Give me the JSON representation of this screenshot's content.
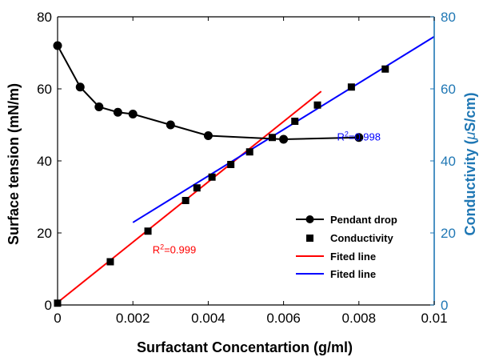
{
  "chart_data": {
    "type": "scatter",
    "xlabel": "Surfactant Concentartion (g/ml)",
    "ylabel_left": "Surface tension (mN/m)",
    "ylabel_right_prefix": "Conductivity (",
    "ylabel_right_mu": "μ",
    "ylabel_right_suffix": "S/cm)",
    "xlim": [
      0,
      0.01
    ],
    "ylim_left": [
      0,
      80
    ],
    "ylim_right": [
      0,
      80
    ],
    "x_ticks": [
      0,
      0.002,
      0.004,
      0.006,
      0.008,
      0.01
    ],
    "x_tick_labels": [
      "0",
      "0.002",
      "0.004",
      "0.006",
      "0.008",
      "0.01"
    ],
    "y_ticks_left": [
      0,
      20,
      40,
      60,
      80
    ],
    "y_tick_labels_left": [
      "0",
      "20",
      "40",
      "60",
      "80"
    ],
    "y_ticks_right": [
      0,
      20,
      40,
      60,
      80
    ],
    "y_tick_labels_right": [
      "0",
      "20",
      "40",
      "60",
      "80"
    ],
    "colors": {
      "black": "#000000",
      "red": "#ff0000",
      "blue": "#0000ff",
      "right_axis": "#1f77b4"
    },
    "legend_position": "lower-right",
    "legend": [
      "Pendant drop",
      "Conductivity",
      "Fited line",
      "Fited line"
    ],
    "series": [
      {
        "name": "Pendant drop",
        "marker": "circle-line",
        "axis": "left",
        "x": [
          0,
          0.0006,
          0.0011,
          0.0016,
          0.002,
          0.003,
          0.004,
          0.006,
          0.008
        ],
        "y": [
          72,
          60.5,
          55,
          53.5,
          53,
          50,
          47,
          46,
          46.5
        ]
      },
      {
        "name": "Conductivity",
        "marker": "square",
        "axis": "right",
        "x": [
          0,
          0.0014,
          0.0024,
          0.0034,
          0.0037,
          0.0041,
          0.0046,
          0.0051,
          0.0057,
          0.0063,
          0.0069,
          0.0078,
          0.0087
        ],
        "y": [
          0.5,
          12,
          20.5,
          29,
          32.5,
          35.5,
          39,
          42.5,
          46.5,
          51,
          55.5,
          60.5,
          65.5
        ]
      },
      {
        "name": "Fited line",
        "marker": "line",
        "color": "red",
        "axis": "right",
        "x": [
          0,
          0.007
        ],
        "y": [
          0.7,
          59.3
        ]
      },
      {
        "name": "Fited line",
        "marker": "line",
        "color": "blue",
        "axis": "right",
        "x": [
          0.002,
          0.01
        ],
        "y": [
          22.9,
          74.5
        ]
      }
    ],
    "annotations": [
      {
        "text_prefix": "R",
        "text_sup": "2",
        "text_suffix": "=0.999",
        "color": "red",
        "x": 0.00252,
        "y": 14.3
      },
      {
        "text_prefix": "R",
        "text_sup": "2",
        "text_suffix": "=0.998",
        "color": "blue",
        "x": 0.00742,
        "y": 45.7
      }
    ]
  }
}
